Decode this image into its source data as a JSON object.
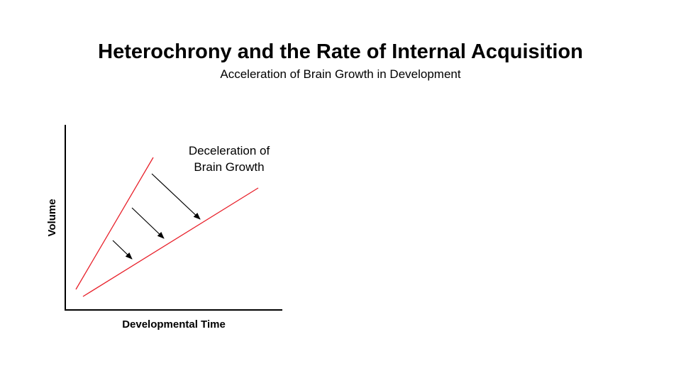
{
  "slide": {
    "title": "Heterochrony and the Rate of Internal Acquisition",
    "subtitle": "Acceleration of Brain Growth in Development"
  },
  "diagram": {
    "y_axis_label": "Volume",
    "x_axis_label": "Developmental Time",
    "annotation_line1": "Deceleration of",
    "annotation_line2": "Brain Growth",
    "colors": {
      "growth_line": "#e8202a",
      "axis": "#000000",
      "arrow": "#000000"
    }
  }
}
